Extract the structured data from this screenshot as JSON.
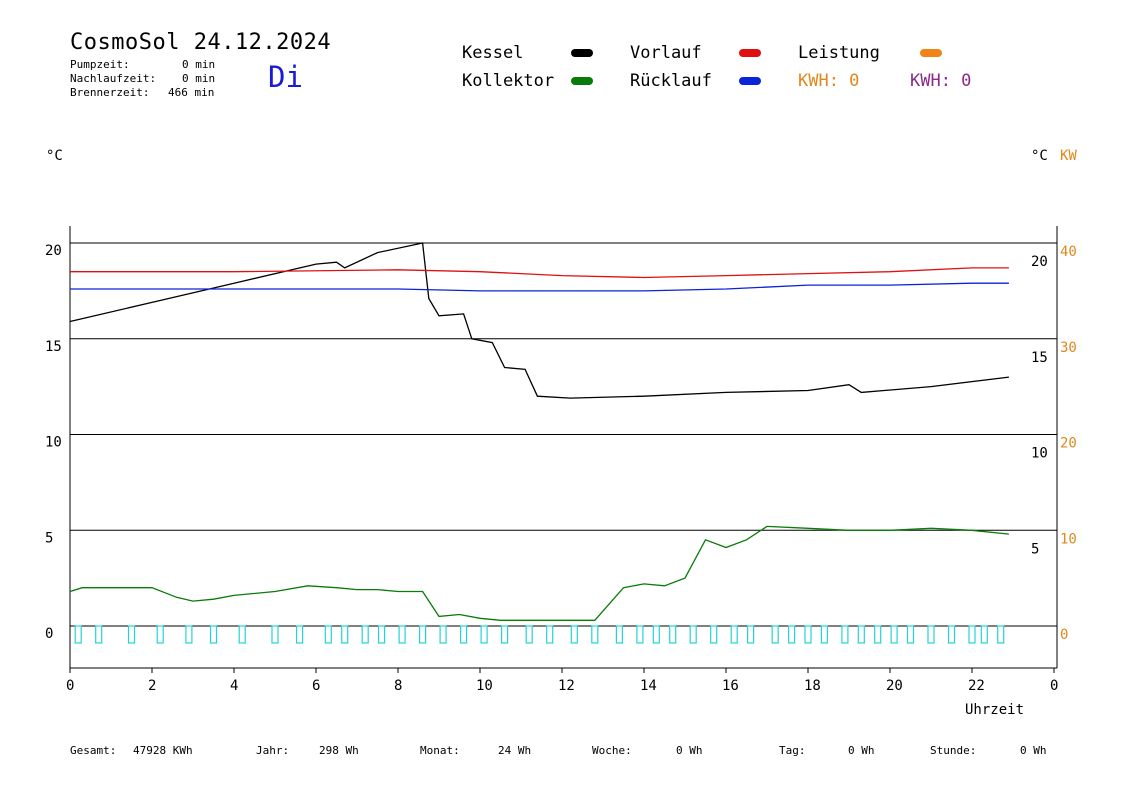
{
  "header": {
    "title": "CosmoSol 24.12.2024",
    "weekday": "Di",
    "pumpzeit_label": "Pumpzeit:",
    "pumpzeit_value": "0 min",
    "nachlaufzeit_label": "Nachlaufzeit:",
    "nachlaufzeit_value": "0 min",
    "brennerzeit_label": "Brennerzeit:",
    "brennerzeit_value": "466 min"
  },
  "legend": {
    "kessel": "Kessel",
    "kollektor": "Kollektor",
    "vorlauf": "Vorlauf",
    "ruecklauf": "Rücklauf",
    "leistung": "Leistung",
    "kwh_orange": "KWH: 0",
    "kwh_purple": "KWH: 0"
  },
  "units": {
    "left": "°C",
    "right_c": "°C",
    "right_kw": "KW"
  },
  "colors": {
    "kessel": "#000000",
    "kollektor": "#0a7a0a",
    "vorlauf": "#e01010",
    "ruecklauf": "#0a24d8",
    "leistung": "#f08418",
    "kwh_orange": "#e0881c",
    "kwh_purple": "#8a2a8a",
    "pump": "#22d4d4",
    "weekday": "#1b1bd6"
  },
  "chart_data": {
    "type": "line",
    "xlabel": "Uhrzeit",
    "x_ticks": [
      "0",
      "2",
      "4",
      "6",
      "8",
      "10",
      "12",
      "14",
      "16",
      "18",
      "20",
      "22",
      "0"
    ],
    "xlim": [
      0,
      24
    ],
    "ylim": [
      0,
      20
    ],
    "y_ticks_left": [
      "0",
      "5",
      "10",
      "15",
      "20"
    ],
    "y_ticks_right_celsius": [
      "5",
      "10",
      "15",
      "20"
    ],
    "y_ticks_right_kw": [
      "0",
      "10",
      "20",
      "30",
      "40"
    ],
    "y2lim_kw": [
      0,
      40
    ],
    "grid": true,
    "series": [
      {
        "name": "Kessel",
        "color": "#000000",
        "x": [
          0,
          2,
          4,
          6,
          6.5,
          6.7,
          7.5,
          8.6,
          8.75,
          9.0,
          9.6,
          9.8,
          10.3,
          10.6,
          11.1,
          11.4,
          12.2,
          14,
          16,
          18,
          19,
          19.3,
          21,
          22.9
        ],
        "y": [
          15.9,
          16.9,
          17.9,
          18.9,
          19.0,
          18.7,
          19.5,
          20.0,
          17.1,
          16.2,
          16.3,
          15.0,
          14.8,
          13.5,
          13.4,
          12.0,
          11.9,
          12.0,
          12.2,
          12.3,
          12.6,
          12.2,
          12.5,
          13.0
        ]
      },
      {
        "name": "Kollektor",
        "color": "#0a7a0a",
        "x": [
          0,
          0.3,
          1,
          2,
          2.6,
          3,
          3.5,
          4,
          5,
          5.8,
          6.5,
          7,
          7.5,
          8.0,
          8.6,
          9.0,
          9.5,
          10,
          10.5,
          11,
          12,
          12.8,
          13.5,
          14,
          14.5,
          15,
          15.5,
          16,
          16.5,
          17,
          18,
          19,
          20,
          21,
          22,
          22.9
        ],
        "y": [
          1.8,
          2.0,
          2.0,
          2.0,
          1.5,
          1.3,
          1.4,
          1.6,
          1.8,
          2.1,
          2.0,
          1.9,
          1.9,
          1.8,
          1.8,
          0.5,
          0.6,
          0.4,
          0.3,
          0.3,
          0.3,
          0.3,
          2.0,
          2.2,
          2.1,
          2.5,
          4.5,
          4.1,
          4.5,
          5.2,
          5.1,
          5.0,
          5.0,
          5.1,
          5.0,
          4.8
        ]
      },
      {
        "name": "Vorlauf",
        "color": "#e01010",
        "x": [
          0,
          4,
          8,
          10,
          12,
          14,
          16,
          18,
          20,
          22,
          22.9
        ],
        "y": [
          18.5,
          18.5,
          18.6,
          18.5,
          18.3,
          18.2,
          18.3,
          18.4,
          18.5,
          18.7,
          18.7
        ]
      },
      {
        "name": "Rücklauf",
        "color": "#0a24d8",
        "x": [
          0,
          4,
          8,
          10,
          12,
          14,
          16,
          18,
          20,
          22,
          22.9
        ],
        "y": [
          17.6,
          17.6,
          17.6,
          17.5,
          17.5,
          17.5,
          17.6,
          17.8,
          17.8,
          17.9,
          17.9
        ]
      }
    ],
    "pump_pulses_hours": [
      0.2,
      0.7,
      1.5,
      2.2,
      2.9,
      3.5,
      4.2,
      5.0,
      5.6,
      6.3,
      6.7,
      7.2,
      7.6,
      8.1,
      8.6,
      9.1,
      9.6,
      10.1,
      10.6,
      11.2,
      11.7,
      12.3,
      12.8,
      13.4,
      13.9,
      14.3,
      14.7,
      15.2,
      15.7,
      16.2,
      16.6,
      17.2,
      17.6,
      18.0,
      18.4,
      18.9,
      19.3,
      19.7,
      20.1,
      20.5,
      21.0,
      21.5,
      22.0,
      22.3,
      22.7
    ],
    "annotations": []
  },
  "footer": {
    "gesamt_label": "Gesamt:",
    "gesamt_value": "47928 KWh",
    "jahr_label": "Jahr:",
    "jahr_value": "298 Wh",
    "monat_label": "Monat:",
    "monat_value": "24 Wh",
    "woche_label": "Woche:",
    "woche_value": "0 Wh",
    "tag_label": "Tag:",
    "tag_value": "0 Wh",
    "stunde_label": "Stunde:",
    "stunde_value": "0 Wh"
  }
}
